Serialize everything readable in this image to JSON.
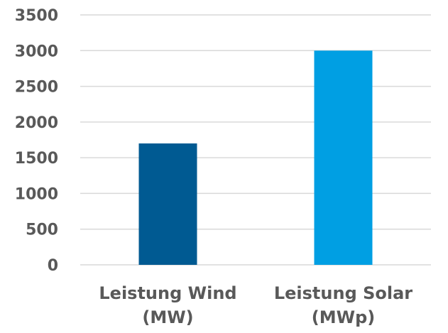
{
  "chart_data": {
    "type": "bar",
    "categories": [
      [
        "Leistung Wind",
        "(MW)"
      ],
      [
        "Leistung Solar",
        "(MWp)"
      ]
    ],
    "values": [
      1700,
      3000
    ],
    "colors": [
      "#005a92",
      "#009fe3"
    ],
    "ylim": [
      0,
      3500
    ],
    "yticks": [
      "0",
      "500",
      "1000",
      "1500",
      "2000",
      "2500",
      "3000",
      "3500"
    ],
    "grid": true,
    "legend": "none",
    "title": "",
    "xlabel": "",
    "ylabel": ""
  }
}
